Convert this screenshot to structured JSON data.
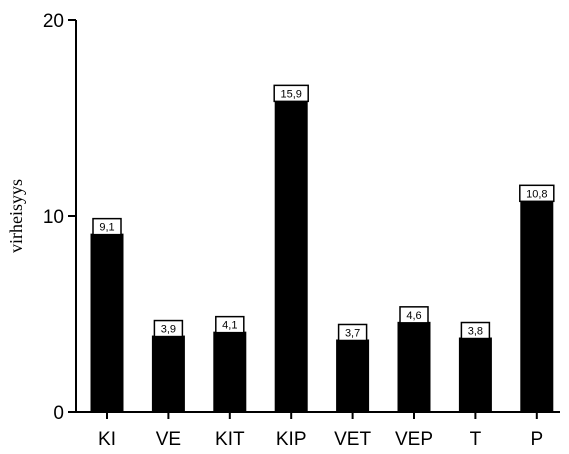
{
  "chart_data": {
    "type": "bar",
    "title": "",
    "xlabel": "",
    "ylabel": "virheisyys",
    "categories": [
      "KI",
      "VE",
      "KIT",
      "KIP",
      "VET",
      "VEP",
      "T",
      "P"
    ],
    "values": [
      9.1,
      3.9,
      4.1,
      15.9,
      3.7,
      4.6,
      3.8,
      10.8
    ],
    "data_labels": [
      "9,1",
      "3,9",
      "4,1",
      "15,9",
      "3,7",
      "4,6",
      "3,8",
      "10,8"
    ],
    "ylim": [
      0,
      20
    ],
    "yticks": [
      0,
      10,
      20
    ],
    "ytick_labels": [
      "0",
      "10",
      "20"
    ],
    "grid": false,
    "bar_color": "#000000",
    "label_box_color": "#ffffff"
  }
}
